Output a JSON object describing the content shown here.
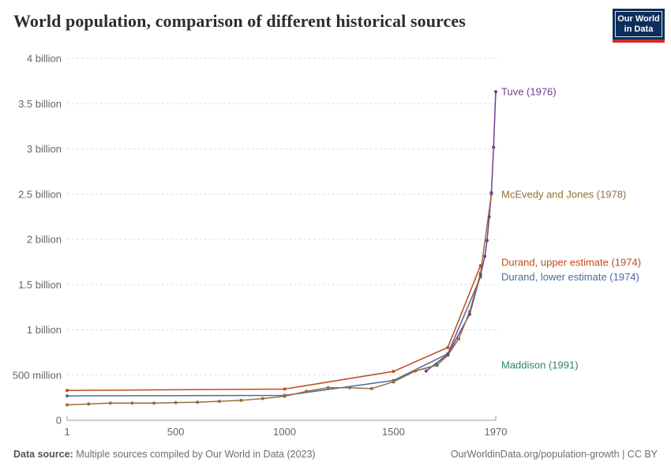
{
  "header": {
    "title": "World population, comparison of different historical sources",
    "logo": {
      "line1": "Our World",
      "line2": "in Data"
    }
  },
  "footer": {
    "source_label": "Data source:",
    "source_value": "Multiple sources compiled by Our World in Data (2023)",
    "credit": "OurWorldinData.org/population-growth | CC BY"
  },
  "chart_data": {
    "type": "line",
    "title": "World population, comparison of different historical sources",
    "x_range": [
      1,
      1970
    ],
    "y_range": [
      0,
      4000
    ],
    "y_unit": "million people",
    "grid": true,
    "legend_position": "right-margin-labels",
    "x_ticks": [
      {
        "value": 1,
        "label": "1"
      },
      {
        "value": 500,
        "label": "500"
      },
      {
        "value": 1000,
        "label": "1000"
      },
      {
        "value": 1500,
        "label": "1500"
      },
      {
        "value": 1970,
        "label": "1970"
      }
    ],
    "y_ticks": [
      {
        "value": 0,
        "label": "0"
      },
      {
        "value": 500,
        "label": "500 million"
      },
      {
        "value": 1000,
        "label": "1 billion"
      },
      {
        "value": 1500,
        "label": "1.5 billion"
      },
      {
        "value": 2000,
        "label": "2 billion"
      },
      {
        "value": 2500,
        "label": "2.5 billion"
      },
      {
        "value": 3000,
        "label": "3 billion"
      },
      {
        "value": 3500,
        "label": "3.5 billion"
      },
      {
        "value": 4000,
        "label": "4 billion"
      }
    ],
    "series": [
      {
        "name": "Maddison (1991)",
        "color": "#2C8465",
        "marker_order": 1,
        "label_dy": 0,
        "highlight_last_point": true,
        "points": [
          [
            1500,
            425
          ],
          [
            1600,
            545
          ],
          [
            1700,
            610
          ]
        ]
      },
      {
        "name": "Durand, lower estimate (1974)",
        "color": "#4C6A9C",
        "marker_order": 2,
        "label_dy": 0,
        "points": [
          [
            1,
            270
          ],
          [
            1000,
            275
          ],
          [
            1500,
            440
          ],
          [
            1750,
            735
          ],
          [
            1900,
            1585
          ]
        ]
      },
      {
        "name": "Durand, upper estimate (1974)",
        "color": "#BE4B1D",
        "marker_order": 3,
        "label_dy": -4,
        "points": [
          [
            1,
            330
          ],
          [
            1000,
            345
          ],
          [
            1500,
            540
          ],
          [
            1750,
            805
          ],
          [
            1900,
            1710
          ]
        ]
      },
      {
        "name": "Tuve (1976)",
        "color": "#6D3E91",
        "marker_order": 5,
        "label_dy": 0,
        "points": [
          [
            1650,
            545
          ],
          [
            1750,
            728
          ],
          [
            1850,
            1171
          ],
          [
            1900,
            1608
          ],
          [
            1920,
            1813
          ],
          [
            1930,
            1987
          ],
          [
            1940,
            2248
          ],
          [
            1950,
            2516
          ],
          [
            1960,
            3019
          ],
          [
            1970,
            3632
          ]
        ]
      },
      {
        "name": "McEvedy and Jones (1978)",
        "color": "#996D39",
        "marker_order": 4,
        "label_dy": 0,
        "points": [
          [
            1,
            170
          ],
          [
            100,
            180
          ],
          [
            200,
            190
          ],
          [
            300,
            190
          ],
          [
            400,
            190
          ],
          [
            500,
            195
          ],
          [
            600,
            200
          ],
          [
            700,
            210
          ],
          [
            800,
            220
          ],
          [
            900,
            240
          ],
          [
            1000,
            265
          ],
          [
            1100,
            320
          ],
          [
            1200,
            360
          ],
          [
            1300,
            360
          ],
          [
            1400,
            350
          ],
          [
            1500,
            425
          ],
          [
            1600,
            545
          ],
          [
            1700,
            610
          ],
          [
            1750,
            720
          ],
          [
            1800,
            900
          ],
          [
            1850,
            1200
          ],
          [
            1900,
            1625
          ],
          [
            1950,
            2500
          ]
        ]
      }
    ],
    "style": {
      "grid_color": "#d8d8d8",
      "axis_color": "#9a9a9a",
      "tick_label_color": "#666666"
    }
  }
}
